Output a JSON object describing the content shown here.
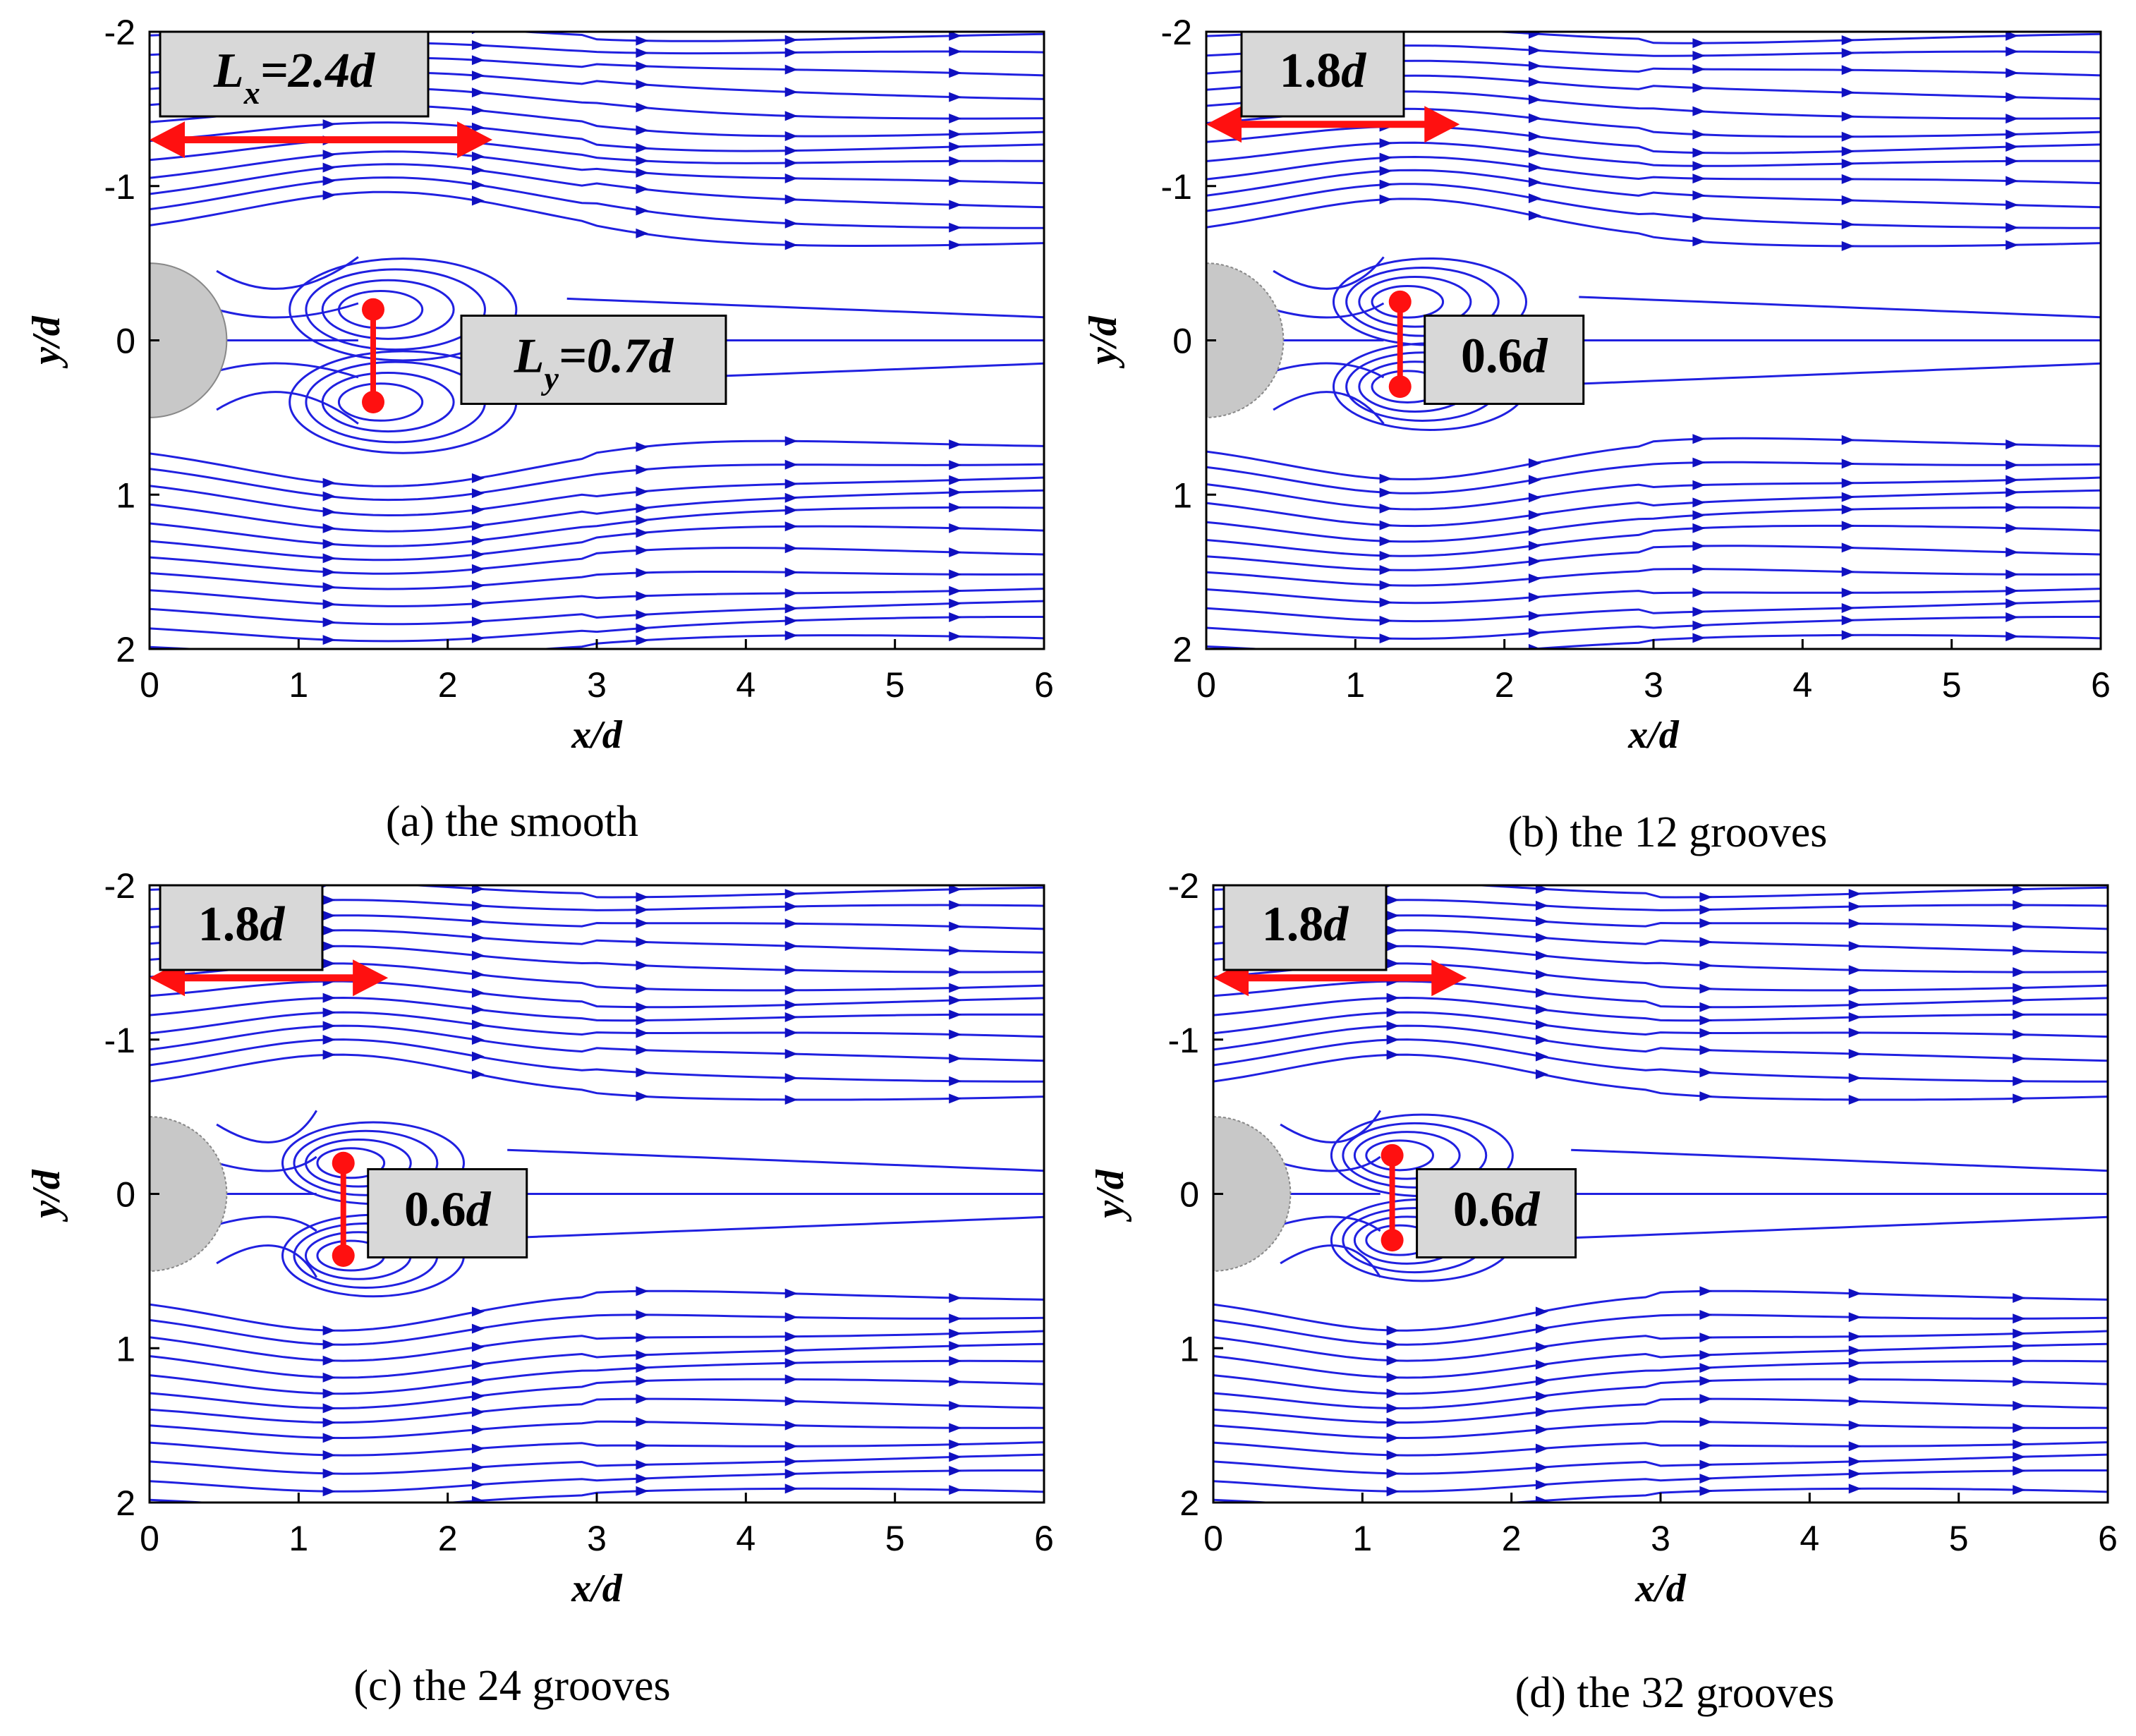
{
  "figure": {
    "panels": [
      {
        "id": "a",
        "caption": "(a) the smooth",
        "xlabel": "x/d",
        "ylabel": "y/d",
        "xlim": [
          0,
          6
        ],
        "ylim": [
          -2,
          2
        ],
        "xticks": [
          "0",
          "1",
          "2",
          "3",
          "4",
          "5",
          "6"
        ],
        "yticks": [
          "-2",
          "-1",
          "0",
          "1",
          "2"
        ],
        "recirc_length": {
          "prefix": "L",
          "sub": "x",
          "value": "=2.4",
          "unit": "d",
          "x_from": 0,
          "x_to": 2.3,
          "y": -1.3
        },
        "recirc_width": {
          "prefix": "L",
          "sub": "y",
          "value": "=0.7",
          "unit": "d",
          "x": 1.5,
          "y_from": -0.2,
          "y_to": 0.4
        },
        "vortex_upper": {
          "x": 1.5,
          "y": -0.2
        },
        "vortex_lower": {
          "x": 1.5,
          "y": 0.4
        },
        "wake_scale": 1.0
      },
      {
        "id": "b",
        "caption": "(b) the 12 grooves",
        "xlabel": "x/d",
        "ylabel": "y/d",
        "xlim": [
          0,
          6
        ],
        "ylim": [
          -2,
          2
        ],
        "xticks": [
          "0",
          "1",
          "2",
          "3",
          "4",
          "5",
          "6"
        ],
        "yticks": [
          "-2",
          "-1",
          "0",
          "1",
          "2"
        ],
        "recirc_length": {
          "prefix": "",
          "sub": "",
          "value": "1.8",
          "unit": "d",
          "x_from": 0,
          "x_to": 1.7,
          "y": -1.4
        },
        "recirc_width": {
          "prefix": "",
          "sub": "",
          "value": "0.6",
          "unit": "d",
          "x": 1.3,
          "y_from": -0.25,
          "y_to": 0.3
        },
        "vortex_upper": {
          "x": 1.3,
          "y": -0.25
        },
        "vortex_lower": {
          "x": 1.3,
          "y": 0.3
        },
        "wake_scale": 0.85
      },
      {
        "id": "c",
        "caption": "(c) the 24 grooves",
        "xlabel": "x/d",
        "ylabel": "y/d",
        "xlim": [
          0,
          6
        ],
        "ylim": [
          -2,
          2
        ],
        "xticks": [
          "0",
          "1",
          "2",
          "3",
          "4",
          "5",
          "6"
        ],
        "yticks": [
          "-2",
          "-1",
          "0",
          "1",
          "2"
        ],
        "recirc_length": {
          "prefix": "",
          "sub": "",
          "value": "1.8",
          "unit": "d",
          "x_from": 0,
          "x_to": 1.6,
          "y": -1.4
        },
        "recirc_width": {
          "prefix": "",
          "sub": "",
          "value": "0.6",
          "unit": "d",
          "x": 1.3,
          "y_from": -0.2,
          "y_to": 0.4
        },
        "vortex_upper": {
          "x": 1.3,
          "y": -0.2
        },
        "vortex_lower": {
          "x": 1.3,
          "y": 0.4
        },
        "wake_scale": 0.8
      },
      {
        "id": "d",
        "caption": "(d) the 32 grooves",
        "xlabel": "x/d",
        "ylabel": "y/d",
        "xlim": [
          0,
          6
        ],
        "ylim": [
          -2,
          2
        ],
        "xticks": [
          "0",
          "1",
          "2",
          "3",
          "4",
          "5",
          "6"
        ],
        "yticks": [
          "-2",
          "-1",
          "0",
          "1",
          "2"
        ],
        "recirc_length": {
          "prefix": "",
          "sub": "",
          "value": "1.8",
          "unit": "d",
          "x_from": 0,
          "x_to": 1.7,
          "y": -1.4
        },
        "recirc_width": {
          "prefix": "",
          "sub": "",
          "value": "0.6",
          "unit": "d",
          "x": 1.2,
          "y_from": -0.25,
          "y_to": 0.3
        },
        "vortex_upper": {
          "x": 1.2,
          "y": -0.25
        },
        "vortex_lower": {
          "x": 1.2,
          "y": 0.3
        },
        "wake_scale": 0.8
      }
    ]
  },
  "chart_data": [
    {
      "type": "streamline",
      "title": "(a) the smooth",
      "xlabel": "x/d",
      "ylabel": "y/d",
      "xlim": [
        0,
        6
      ],
      "ylim": [
        -2,
        2
      ],
      "annotations": [
        "Lx=2.4d",
        "Ly=0.7d"
      ],
      "recirculation_length": 2.4,
      "recirculation_width": 0.7
    },
    {
      "type": "streamline",
      "title": "(b) the 12 grooves",
      "xlabel": "x/d",
      "ylabel": "y/d",
      "xlim": [
        0,
        6
      ],
      "ylim": [
        -2,
        2
      ],
      "annotations": [
        "1.8d",
        "0.6d"
      ],
      "recirculation_length": 1.8,
      "recirculation_width": 0.6
    },
    {
      "type": "streamline",
      "title": "(c) the 24 grooves",
      "xlabel": "x/d",
      "ylabel": "y/d",
      "xlim": [
        0,
        6
      ],
      "ylim": [
        -2,
        2
      ],
      "annotations": [
        "1.8d",
        "0.6d"
      ],
      "recirculation_length": 1.8,
      "recirculation_width": 0.6
    },
    {
      "type": "streamline",
      "title": "(d) the 32 grooves",
      "xlabel": "x/d",
      "ylabel": "y/d",
      "xlim": [
        0,
        6
      ],
      "ylim": [
        -2,
        2
      ],
      "annotations": [
        "1.8d",
        "0.6d"
      ],
      "recirculation_length": 1.8,
      "recirculation_width": 0.6
    }
  ],
  "colors": {
    "streamline": "#2020e0",
    "arrow": "#1010c0",
    "marker": "#ff1010",
    "cylinder": "#c8c8c8",
    "label_box": "#d8d8d8"
  }
}
